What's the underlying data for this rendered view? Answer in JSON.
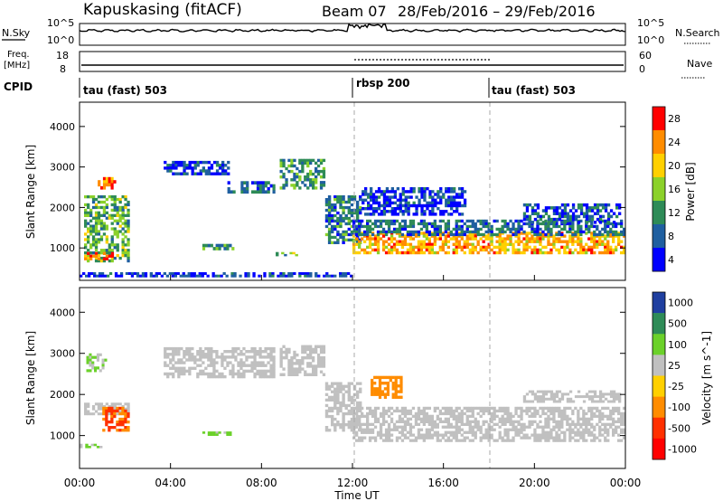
{
  "header": {
    "station": "Kapuskasing (fitACF)",
    "beam": "Beam 07",
    "date_range": "28/Feb/2016 – 29/Feb/2016"
  },
  "nsky_panel": {
    "left_label": "N.Sky",
    "left_ticks": [
      "10^5",
      "10^0"
    ],
    "right_ticks": [
      "10^5",
      "10^0"
    ],
    "right_label": "N.Search"
  },
  "freq_panel": {
    "left_label_line1": "Freq.",
    "left_label_line2": "[MHz]",
    "left_ticks": [
      "18",
      "8"
    ],
    "right_ticks": [
      "60",
      "0"
    ],
    "right_label": "Nave"
  },
  "cpid_panel": {
    "label": "CPID",
    "segments": [
      {
        "start_hour": 0,
        "text": "tau (fast) 503"
      },
      {
        "start_hour": 12,
        "text": "rbsp 200"
      },
      {
        "start_hour": 18,
        "text": "tau (fast) 503"
      }
    ]
  },
  "time_axis": {
    "label": "Time UT",
    "ticks": [
      "00:00",
      "04:00",
      "08:00",
      "12:00",
      "16:00",
      "20:00",
      "00:00"
    ],
    "tick_hours": [
      0,
      4,
      8,
      12,
      16,
      20,
      24
    ]
  },
  "chart_data": [
    {
      "type": "heatmap",
      "title": "",
      "xlabel": "",
      "ylabel": "Slant Range [km]",
      "xlim": [
        0,
        24
      ],
      "ylim": [
        200,
        4600
      ],
      "yticks": [
        1000,
        2000,
        3000,
        4000
      ],
      "colorbar": {
        "label": "Power [dB]",
        "tick_labels": [
          "28",
          "24",
          "20",
          "16",
          "12",
          "8",
          "4"
        ],
        "colors": [
          "#ff0000",
          "#ff8c00",
          "#ffd000",
          "#8bd12a",
          "#2e8b57",
          "#1f5fa0",
          "#0000ff"
        ]
      },
      "echo_regions": [
        {
          "t": [
            0.2,
            2.2
          ],
          "r": [
            650,
            2300
          ],
          "value": 14
        },
        {
          "t": [
            0.8,
            1.6
          ],
          "r": [
            2450,
            2750
          ],
          "value": 24
        },
        {
          "t": [
            0.2,
            1.5
          ],
          "r": [
            700,
            900
          ],
          "value": 26
        },
        {
          "t": [
            3.7,
            6.6
          ],
          "r": [
            2800,
            3150
          ],
          "value": 6
        },
        {
          "t": [
            6.5,
            8.6
          ],
          "r": [
            2350,
            2650
          ],
          "value": 9
        },
        {
          "t": [
            8.8,
            10.8
          ],
          "r": [
            2450,
            3200
          ],
          "value": 12
        },
        {
          "t": [
            10.8,
            12.4
          ],
          "r": [
            1100,
            2300
          ],
          "value": 10
        },
        {
          "t": [
            12.0,
            24.0
          ],
          "r": [
            850,
            1400
          ],
          "value": 22
        },
        {
          "t": [
            12.0,
            24.0
          ],
          "r": [
            1300,
            1700
          ],
          "value": 9
        },
        {
          "t": [
            12.4,
            17.0
          ],
          "r": [
            1800,
            2500
          ],
          "value": 6
        },
        {
          "t": [
            19.5,
            23.8
          ],
          "r": [
            1600,
            2100
          ],
          "value": 8
        },
        {
          "t": [
            0.0,
            12.0
          ],
          "r": [
            280,
            400
          ],
          "value": 6
        },
        {
          "t": [
            5.4,
            6.8
          ],
          "r": [
            950,
            1100
          ],
          "value": 12
        },
        {
          "t": [
            8.5,
            9.6
          ],
          "r": [
            800,
            900
          ],
          "value": 14
        }
      ]
    },
    {
      "type": "heatmap",
      "title": "",
      "xlabel": "Time UT",
      "ylabel": "Slant Range [km]",
      "xlim": [
        0,
        24
      ],
      "ylim": [
        200,
        4600
      ],
      "yticks": [
        1000,
        2000,
        3000,
        4000
      ],
      "colorbar": {
        "label": "Velocity [m s^-1]",
        "tick_labels": [
          "1000",
          "500",
          "100",
          "25",
          "-25",
          "-100",
          "-500",
          "-1000"
        ],
        "colors": [
          "#1f3fa0",
          "#2e8b57",
          "#6bd12a",
          "#c0c0c0",
          "#ffd000",
          "#ff8c00",
          "#ff3000",
          "#ff0000"
        ]
      },
      "echo_regions": [
        {
          "t": [
            0.2,
            2.2
          ],
          "r": [
            1500,
            1800
          ],
          "value": 0
        },
        {
          "t": [
            1.0,
            2.2
          ],
          "r": [
            1100,
            1700
          ],
          "value": -300
        },
        {
          "t": [
            0.3,
            1.2
          ],
          "r": [
            2550,
            3000
          ],
          "value": 60
        },
        {
          "t": [
            0.0,
            1.0
          ],
          "r": [
            700,
            800
          ],
          "value": 60
        },
        {
          "t": [
            3.7,
            8.6
          ],
          "r": [
            2400,
            3150
          ],
          "value": 0
        },
        {
          "t": [
            8.8,
            10.8
          ],
          "r": [
            2450,
            3200
          ],
          "value": 0
        },
        {
          "t": [
            10.8,
            12.4
          ],
          "r": [
            1100,
            2300
          ],
          "value": 0
        },
        {
          "t": [
            12.0,
            24.0
          ],
          "r": [
            850,
            1700
          ],
          "value": 0
        },
        {
          "t": [
            12.8,
            14.2
          ],
          "r": [
            1900,
            2450
          ],
          "value": -200
        },
        {
          "t": [
            19.5,
            23.8
          ],
          "r": [
            1800,
            2100
          ],
          "value": 0
        },
        {
          "t": [
            5.4,
            6.8
          ],
          "r": [
            1000,
            1100
          ],
          "value": 80
        }
      ]
    }
  ]
}
